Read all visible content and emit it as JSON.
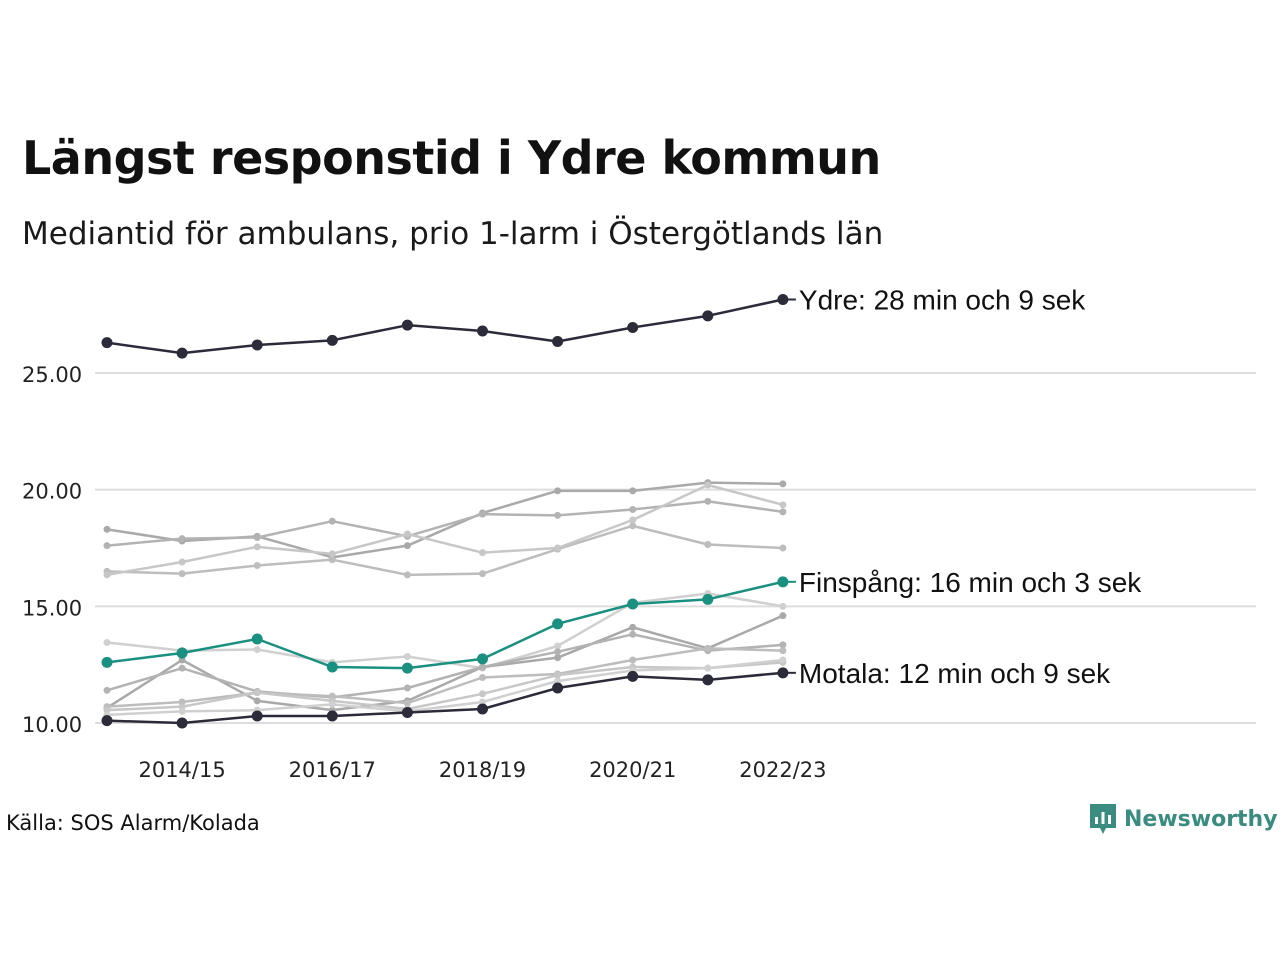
{
  "title": "Längst responstid i Ydre kommun",
  "subtitle": "Mediantid för ambulans, prio 1-larm i Östergötlands län",
  "source": "Källa: SOS Alarm/Kolada",
  "logo": {
    "text": "Newsworthy",
    "icon": "newsworthy-bar-chart-icon",
    "color": "#3a8c80"
  },
  "colors": {
    "highlight": "#2b2b3a",
    "accent": "#1a9080",
    "background_series": [
      "#a9a9a9",
      "#b3b3b3",
      "#bdbdbd",
      "#c7c7c7",
      "#d0d0d0"
    ],
    "grid": "#dddddd"
  },
  "chart_data": {
    "type": "line",
    "x": [
      "2013/14",
      "2014/15",
      "2015/16",
      "2016/17",
      "2017/18",
      "2018/19",
      "2019/20",
      "2020/21",
      "2021/22",
      "2022/23"
    ],
    "x_tick_labels": [
      "2014/15",
      "2016/17",
      "2018/19",
      "2020/21",
      "2022/23"
    ],
    "y_tick_labels": [
      "10.00",
      "15.00",
      "20.00",
      "25.00"
    ],
    "ylim": [
      9.5,
      28.9
    ],
    "grid": "horizontal",
    "title": "Längst responstid i Ydre kommun",
    "xlabel": "",
    "ylabel": "",
    "series": [
      {
        "name": "Ydre",
        "label": "Ydre: 28 min och 9 sek",
        "role": "highlight",
        "values": [
          26.3,
          25.85,
          26.2,
          26.4,
          27.05,
          26.8,
          26.35,
          26.95,
          27.45,
          28.15
        ]
      },
      {
        "name": "Finspång",
        "label": "Finspång: 16 min och 3 sek",
        "role": "accent",
        "values": [
          12.6,
          13.0,
          13.6,
          12.4,
          12.35,
          12.75,
          14.25,
          15.1,
          15.3,
          16.05
        ]
      },
      {
        "name": "Motala",
        "label": "Motala: 12 min och 9 sek",
        "role": "highlight",
        "values": [
          10.1,
          10.0,
          10.3,
          10.3,
          10.45,
          10.6,
          11.5,
          12.0,
          11.85,
          12.15
        ]
      },
      {
        "role": "background",
        "values": [
          18.3,
          17.8,
          18.0,
          17.1,
          17.6,
          19.0,
          19.95,
          19.95,
          20.3,
          20.25
        ]
      },
      {
        "role": "background",
        "values": [
          17.6,
          17.9,
          17.95,
          18.65,
          18.0,
          18.95,
          18.9,
          19.15,
          19.5,
          19.05
        ]
      },
      {
        "role": "background",
        "values": [
          16.5,
          16.4,
          16.75,
          17.0,
          16.35,
          16.4,
          17.45,
          18.45,
          17.65,
          17.5
        ]
      },
      {
        "role": "background",
        "values": [
          16.35,
          16.9,
          17.55,
          17.25,
          18.1,
          17.3,
          17.5,
          18.7,
          20.2,
          19.35
        ]
      },
      {
        "role": "background",
        "values": [
          13.45,
          13.1,
          13.15,
          12.6,
          12.85,
          12.35,
          13.3,
          15.15,
          15.55,
          15.0
        ]
      },
      {
        "role": "background",
        "values": [
          10.65,
          12.7,
          10.95,
          10.55,
          10.95,
          12.4,
          12.8,
          14.1,
          13.2,
          14.6
        ]
      },
      {
        "role": "background",
        "values": [
          11.4,
          12.35,
          11.35,
          11.1,
          11.5,
          12.4,
          13.05,
          13.8,
          13.1,
          13.35
        ]
      },
      {
        "role": "background",
        "values": [
          10.7,
          10.9,
          11.3,
          11.15,
          10.85,
          11.95,
          12.1,
          12.7,
          13.2,
          13.1
        ]
      },
      {
        "role": "background",
        "values": [
          10.55,
          10.7,
          11.3,
          10.95,
          10.6,
          11.25,
          12.05,
          12.4,
          12.35,
          12.6
        ]
      },
      {
        "role": "background",
        "values": [
          10.35,
          10.5,
          10.55,
          10.8,
          10.5,
          10.9,
          11.8,
          12.25,
          12.35,
          12.7
        ]
      }
    ]
  }
}
